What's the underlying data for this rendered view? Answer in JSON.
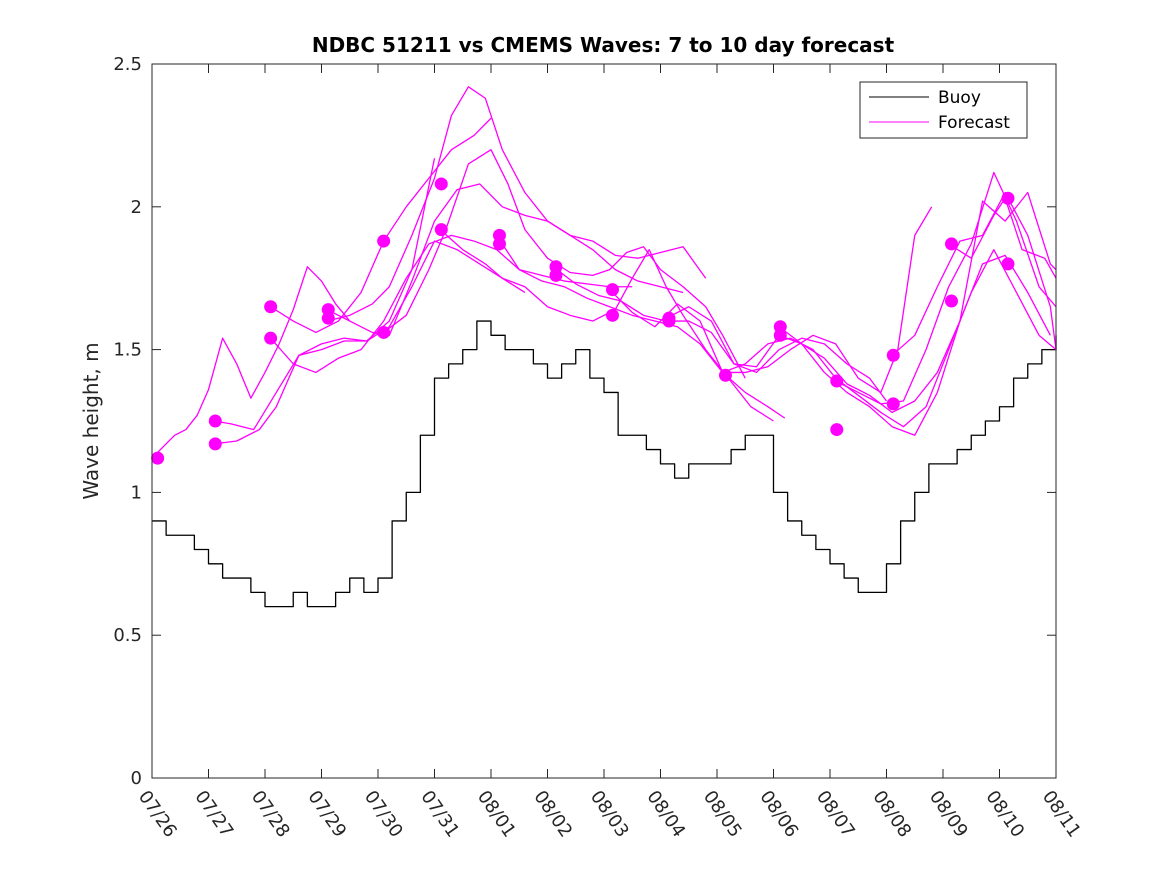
{
  "chart_data": {
    "type": "line",
    "title": "NDBC 51211 vs CMEMS Waves: 7 to 10 day forecast",
    "xlabel": "",
    "ylabel": "Wave height, m",
    "x_ticks": [
      "07/26",
      "07/27",
      "07/28",
      "07/29",
      "07/30",
      "07/31",
      "08/01",
      "08/02",
      "08/03",
      "08/04",
      "08/05",
      "08/06",
      "08/07",
      "08/08",
      "08/09",
      "08/10",
      "08/11"
    ],
    "x_range_days": [
      0,
      16
    ],
    "ylim": [
      0,
      2.5
    ],
    "y_ticks": [
      "0",
      "0.5",
      "1",
      "1.5",
      "2",
      "2.5"
    ],
    "legend": {
      "position": "top-right",
      "entries": [
        {
          "label": "Buoy",
          "color": "#000000"
        },
        {
          "label": "Forecast",
          "color": "#ff00ff"
        }
      ]
    },
    "colors": {
      "buoy": "#000000",
      "forecast": "#ff00ff"
    },
    "series": [
      {
        "name": "Buoy",
        "type": "line",
        "x": [
          0,
          0.25,
          0.5,
          0.75,
          1,
          1.25,
          1.5,
          1.75,
          2,
          2.25,
          2.5,
          2.75,
          3,
          3.25,
          3.5,
          3.75,
          4,
          4.25,
          4.5,
          4.75,
          5,
          5.25,
          5.5,
          5.75,
          6,
          6.25,
          6.5,
          6.75,
          7,
          7.25,
          7.5,
          7.75,
          8,
          8.25,
          8.5,
          8.75,
          9,
          9.25,
          9.5,
          9.75,
          10,
          10.25,
          10.5,
          10.75,
          11,
          11.25,
          11.5,
          11.75,
          12,
          12.25,
          12.5,
          12.75,
          13,
          13.25,
          13.5,
          13.75,
          14,
          14.25,
          14.5,
          14.75,
          15,
          15.25,
          15.5,
          15.75,
          16
        ],
        "y": [
          0.9,
          0.85,
          0.85,
          0.8,
          0.75,
          0.7,
          0.7,
          0.65,
          0.6,
          0.6,
          0.65,
          0.6,
          0.6,
          0.65,
          0.7,
          0.65,
          0.7,
          0.9,
          1.0,
          1.2,
          1.4,
          1.45,
          1.5,
          1.6,
          1.55,
          1.5,
          1.5,
          1.45,
          1.4,
          1.45,
          1.5,
          1.4,
          1.35,
          1.2,
          1.2,
          1.15,
          1.1,
          1.05,
          1.1,
          1.1,
          1.1,
          1.15,
          1.2,
          1.2,
          1.0,
          0.9,
          0.85,
          0.8,
          0.75,
          0.7,
          0.65,
          0.65,
          0.75,
          0.9,
          1.0,
          1.1,
          1.1,
          1.15,
          1.2,
          1.25,
          1.3,
          1.4,
          1.45,
          1.5,
          1.55
        ]
      },
      {
        "name": "",
        "type": "line",
        "x": [
          0,
          0.2,
          0.4,
          0.6,
          0.8,
          1.0,
          1.25,
          1.5,
          1.75,
          2.0,
          2.25,
          2.5,
          2.75,
          3.0,
          3.25,
          3.5
        ],
        "y": [
          1.12,
          1.16,
          1.2,
          1.22,
          1.27,
          1.36,
          1.54,
          1.45,
          1.33,
          1.42,
          1.52,
          1.64,
          1.79,
          1.74,
          1.66,
          1.6
        ]
      },
      {
        "name": "",
        "type": "line",
        "x": [
          1.1,
          1.4,
          1.8,
          2.2,
          2.6,
          3.0,
          3.4,
          3.8,
          4.2,
          4.6,
          5.0
        ],
        "y": [
          1.25,
          1.24,
          1.22,
          1.35,
          1.48,
          1.52,
          1.54,
          1.53,
          1.6,
          1.78,
          2.17
        ]
      },
      {
        "name": "",
        "type": "line",
        "x": [
          1.1,
          1.5,
          1.9,
          2.2,
          2.6,
          3.0,
          3.4,
          3.8,
          4.2,
          4.6,
          5.0,
          5.4,
          5.8,
          6.2,
          6.6
        ],
        "y": [
          1.17,
          1.18,
          1.22,
          1.3,
          1.48,
          1.5,
          1.53,
          1.53,
          1.58,
          1.72,
          1.88,
          1.85,
          1.8,
          1.75,
          1.7
        ]
      },
      {
        "name": "",
        "type": "line",
        "x": [
          2.1,
          2.5,
          2.9,
          3.3,
          3.7,
          4.1,
          4.5,
          4.9,
          5.3,
          5.7,
          6.1,
          6.5,
          6.9,
          7.3,
          7.7,
          8.1,
          8.5
        ],
        "y": [
          1.54,
          1.45,
          1.42,
          1.47,
          1.5,
          1.6,
          1.75,
          1.87,
          1.9,
          1.88,
          1.85,
          1.78,
          1.76,
          1.74,
          1.73,
          1.72,
          1.72
        ]
      },
      {
        "name": "",
        "type": "line",
        "x": [
          2.1,
          2.5,
          2.9,
          3.3,
          3.7,
          4.1,
          4.5,
          4.9,
          5.3,
          5.7,
          6.0
        ],
        "y": [
          1.65,
          1.6,
          1.56,
          1.6,
          1.7,
          1.88,
          2.0,
          2.1,
          2.2,
          2.25,
          2.31
        ]
      },
      {
        "name": "",
        "type": "line",
        "x": [
          3.1,
          3.5,
          3.9,
          4.2,
          4.6,
          5.0,
          5.3,
          5.6,
          5.9,
          6.2,
          6.6,
          7.0,
          7.4,
          7.8,
          8.2,
          8.6,
          9.0,
          9.4
        ],
        "y": [
          1.6,
          1.62,
          1.66,
          1.72,
          1.9,
          2.1,
          2.32,
          2.42,
          2.38,
          2.2,
          2.05,
          1.95,
          1.9,
          1.85,
          1.78,
          1.74,
          1.72,
          1.7
        ]
      },
      {
        "name": "",
        "type": "line",
        "x": [
          3.1,
          3.5,
          3.9,
          4.2,
          4.6,
          5.0,
          5.4,
          5.8,
          6.2,
          6.6,
          7.0,
          7.4,
          7.8,
          8.2,
          8.6,
          9.0,
          9.4,
          9.8
        ],
        "y": [
          1.64,
          1.6,
          1.56,
          1.55,
          1.74,
          1.95,
          2.06,
          2.08,
          2.0,
          1.97,
          1.95,
          1.9,
          1.88,
          1.83,
          1.82,
          1.84,
          1.86,
          1.75
        ]
      },
      {
        "name": "",
        "type": "line",
        "x": [
          4.1,
          4.5,
          4.9,
          5.2,
          5.6,
          6.0,
          6.3,
          6.6,
          7.0,
          7.4,
          7.8,
          8.1,
          8.4,
          8.7,
          9.0,
          9.4,
          9.8,
          10.1,
          10.5
        ],
        "y": [
          1.56,
          1.62,
          1.78,
          1.92,
          2.15,
          2.2,
          2.08,
          1.92,
          1.82,
          1.77,
          1.76,
          1.78,
          1.84,
          1.86,
          1.78,
          1.72,
          1.65,
          1.55,
          1.4
        ]
      },
      {
        "name": "",
        "type": "line",
        "x": [
          5.1,
          5.5,
          5.9,
          6.2,
          6.6,
          7.0,
          7.4,
          7.8,
          8.2,
          8.5,
          8.8,
          9.1,
          9.4,
          9.8,
          10.2,
          10.6,
          11.0
        ],
        "y": [
          1.92,
          1.85,
          1.8,
          1.75,
          1.72,
          1.65,
          1.62,
          1.6,
          1.64,
          1.75,
          1.85,
          1.72,
          1.62,
          1.5,
          1.4,
          1.3,
          1.25
        ]
      },
      {
        "name": "",
        "type": "line",
        "x": [
          6.1,
          6.5,
          6.9,
          7.3,
          7.7,
          8.1,
          8.5,
          8.9,
          9.3,
          9.7,
          10.1,
          10.5,
          10.9,
          11.2
        ],
        "y": [
          1.9,
          1.78,
          1.74,
          1.72,
          1.68,
          1.65,
          1.62,
          1.6,
          1.58,
          1.52,
          1.42,
          1.35,
          1.3,
          1.26
        ]
      },
      {
        "name": "",
        "type": "line",
        "x": [
          7.1,
          7.5,
          7.9,
          8.3,
          8.7,
          9.1,
          9.5,
          9.9,
          10.3,
          10.7,
          11.1,
          11.5,
          11.9,
          12.3,
          12.7,
          13.0
        ],
        "y": [
          1.79,
          1.73,
          1.69,
          1.67,
          1.62,
          1.6,
          1.6,
          1.56,
          1.45,
          1.42,
          1.5,
          1.54,
          1.52,
          1.45,
          1.4,
          1.32
        ]
      },
      {
        "name": "",
        "type": "line",
        "x": [
          8.1,
          8.5,
          8.9,
          9.3,
          9.7,
          10.1,
          10.5,
          10.9,
          11.3,
          11.7,
          12.1,
          12.5,
          12.9,
          13.2,
          13.5,
          13.8
        ],
        "y": [
          1.71,
          1.63,
          1.58,
          1.66,
          1.6,
          1.42,
          1.42,
          1.44,
          1.5,
          1.55,
          1.52,
          1.4,
          1.35,
          1.5,
          1.9,
          2.0
        ]
      },
      {
        "name": "",
        "type": "line",
        "x": [
          9.1,
          9.5,
          9.9,
          10.3,
          10.7,
          11.1,
          11.5,
          11.9,
          12.3,
          12.7,
          13.1,
          13.5,
          13.9,
          14.3,
          14.7,
          15.1,
          15.5,
          15.9
        ],
        "y": [
          1.61,
          1.65,
          1.6,
          1.45,
          1.44,
          1.55,
          1.52,
          1.47,
          1.38,
          1.34,
          1.28,
          1.32,
          1.42,
          1.6,
          1.8,
          1.83,
          1.7,
          1.55
        ]
      },
      {
        "name": "",
        "type": "line",
        "x": [
          10.1,
          10.5,
          10.9,
          11.3,
          11.7,
          12.1,
          12.5,
          12.9,
          13.3,
          13.7,
          14.1,
          14.5,
          14.9,
          15.3,
          15.7,
          16.0
        ],
        "y": [
          1.42,
          1.45,
          1.52,
          1.54,
          1.5,
          1.4,
          1.34,
          1.28,
          1.23,
          1.3,
          1.5,
          1.7,
          1.85,
          1.7,
          1.55,
          1.5
        ]
      },
      {
        "name": "",
        "type": "line",
        "x": [
          11.1,
          11.5,
          11.9,
          12.3,
          12.7,
          13.1,
          13.5,
          13.9,
          14.3,
          14.7,
          15.1,
          15.5,
          15.9,
          16.0
        ],
        "y": [
          1.58,
          1.52,
          1.42,
          1.35,
          1.3,
          1.23,
          1.2,
          1.35,
          1.6,
          2.02,
          1.95,
          2.05,
          1.8,
          1.78
        ]
      },
      {
        "name": "",
        "type": "line",
        "x": [
          12.1,
          12.5,
          12.9,
          13.3,
          13.7,
          14.1,
          14.5,
          14.9,
          15.3,
          15.7,
          16.0
        ],
        "y": [
          1.39,
          1.35,
          1.31,
          1.32,
          1.5,
          1.72,
          1.87,
          2.12,
          1.95,
          1.72,
          1.65
        ]
      },
      {
        "name": "",
        "type": "line",
        "x": [
          13.1,
          13.5,
          13.9,
          14.3,
          14.7,
          15.1,
          15.5,
          15.9,
          16.0
        ],
        "y": [
          1.48,
          1.55,
          1.72,
          1.88,
          1.9,
          2.05,
          1.9,
          1.65,
          1.5
        ]
      },
      {
        "name": "",
        "type": "line",
        "x": [
          14.1,
          14.5,
          14.9,
          15.1,
          15.4,
          15.8,
          16.0
        ],
        "y": [
          1.87,
          1.82,
          1.97,
          2.03,
          1.85,
          1.82,
          1.75
        ]
      }
    ],
    "markers": {
      "name": "Forecast",
      "x": [
        0.1,
        1.12,
        1.12,
        2.1,
        2.1,
        3.12,
        3.12,
        4.1,
        4.1,
        5.12,
        5.12,
        6.15,
        6.15,
        7.15,
        7.15,
        8.15,
        8.15,
        9.15,
        9.15,
        10.15,
        11.12,
        11.12,
        12.12,
        12.12,
        13.12,
        13.12,
        14.15,
        14.15,
        15.15,
        15.15
      ],
      "y": [
        1.12,
        1.25,
        1.17,
        1.65,
        1.54,
        1.64,
        1.61,
        1.88,
        1.56,
        2.08,
        1.92,
        1.9,
        1.87,
        1.79,
        1.76,
        1.71,
        1.62,
        1.61,
        1.6,
        1.41,
        1.58,
        1.55,
        1.39,
        1.22,
        1.48,
        1.31,
        1.87,
        1.67,
        2.03,
        1.8
      ]
    }
  }
}
